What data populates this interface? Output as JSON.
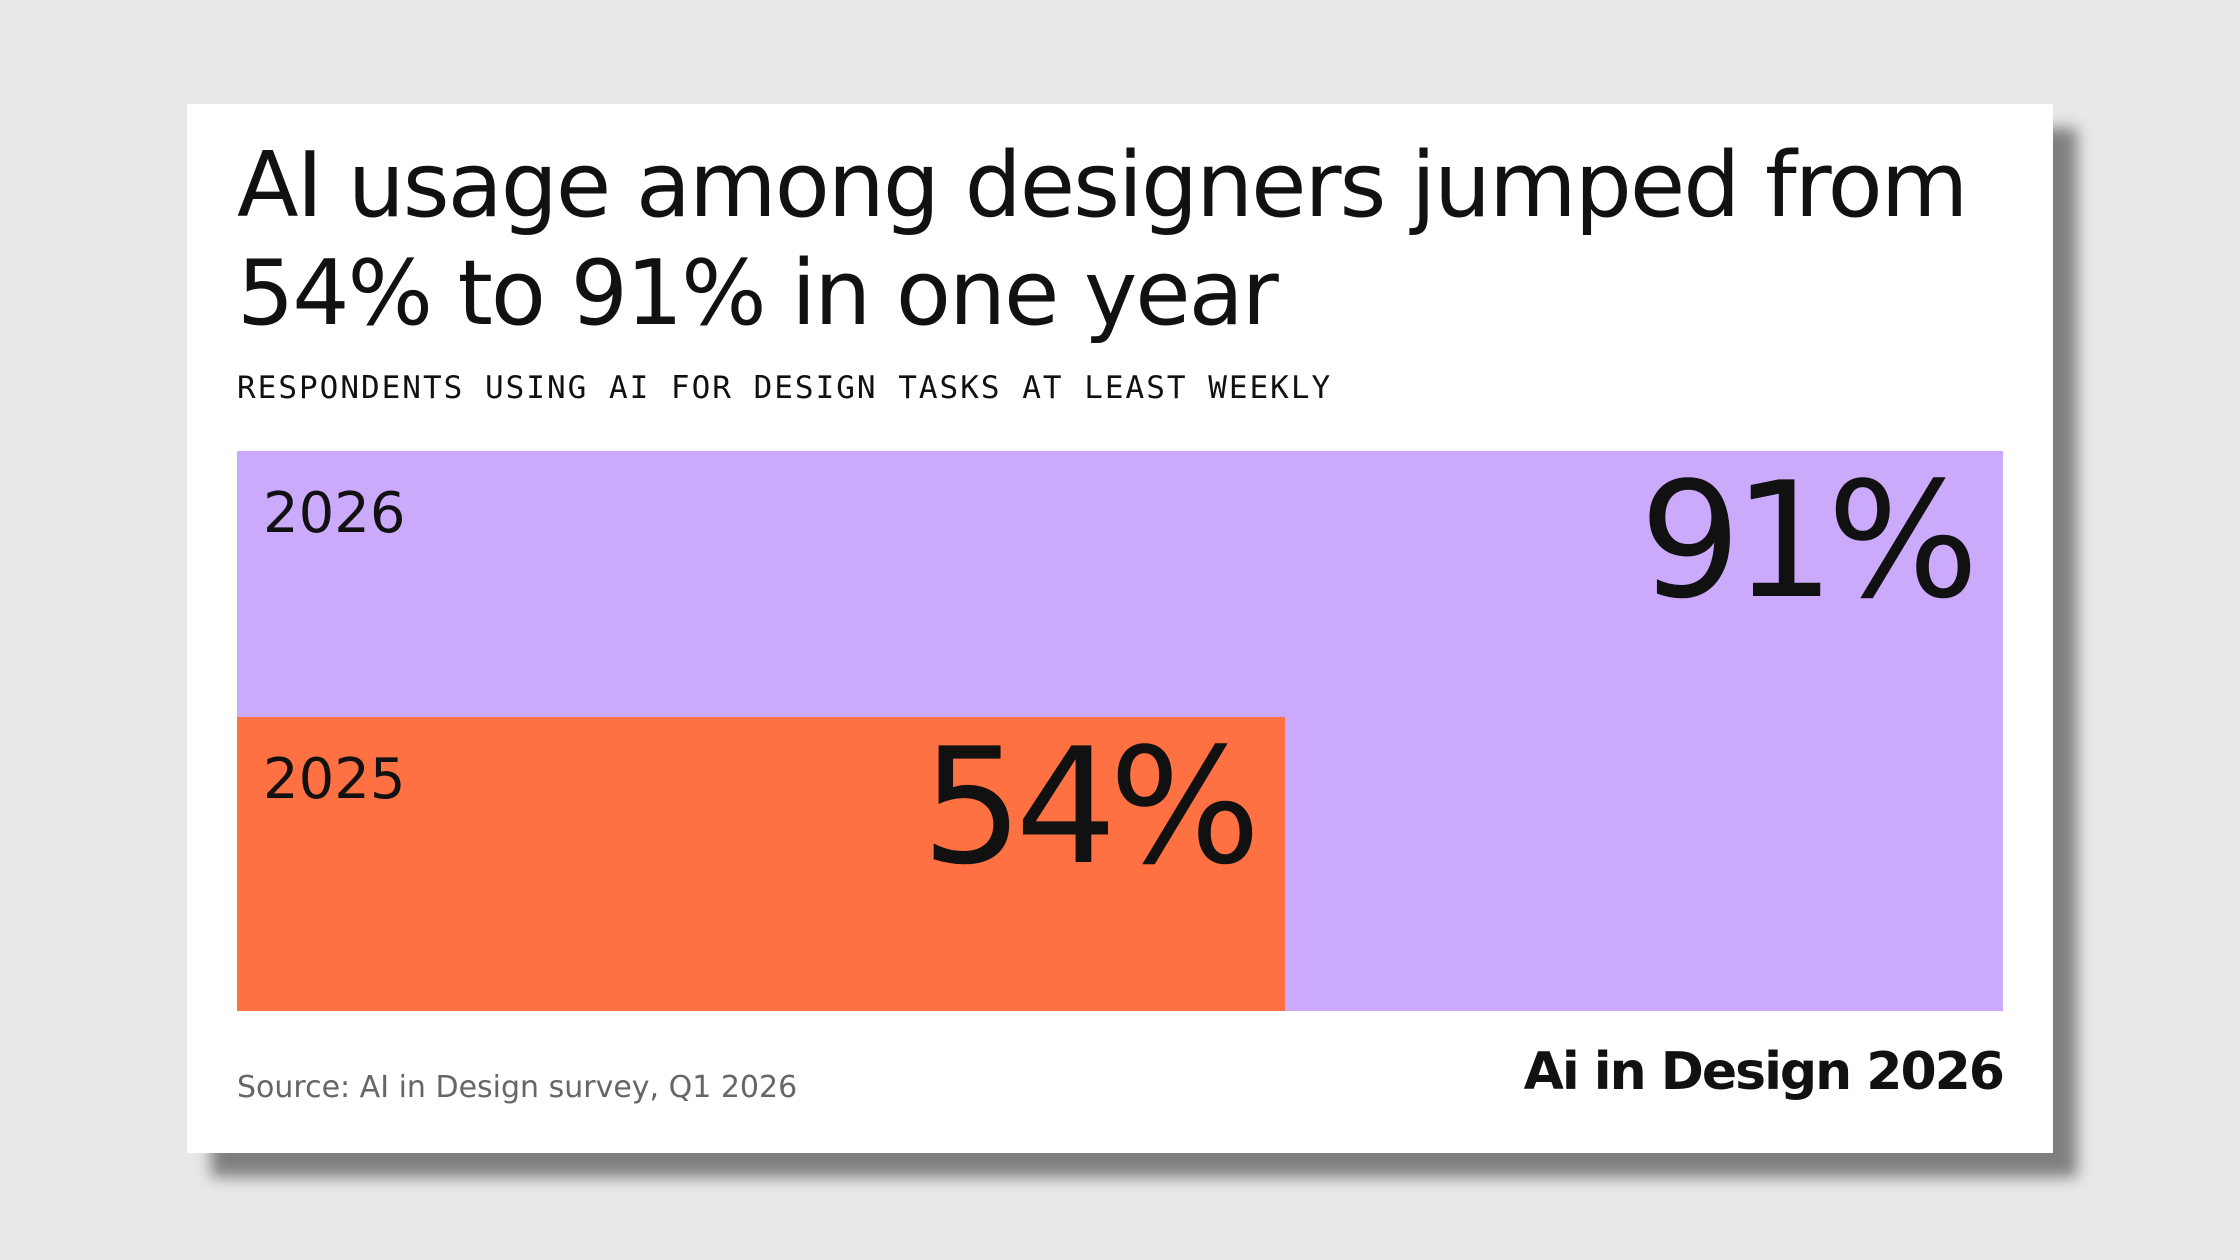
{
  "chart_data": {
    "type": "bar",
    "orientation": "horizontal",
    "title": "AI usage among designers jumped from 54% to 91% in one year",
    "subtitle": "RESPONDENTS USING AI FOR DESIGN TASKS AT LEAST WEEKLY",
    "categories": [
      "2026",
      "2025"
    ],
    "values": [
      91,
      54
    ],
    "value_labels": [
      "91%",
      "54%"
    ],
    "colors": [
      "#cbaafc",
      "#ff7142"
    ],
    "xlim": [
      0,
      91
    ],
    "source": "Source: AI in Design survey, Q1 2026",
    "brand": "Ai in Design 2026"
  }
}
